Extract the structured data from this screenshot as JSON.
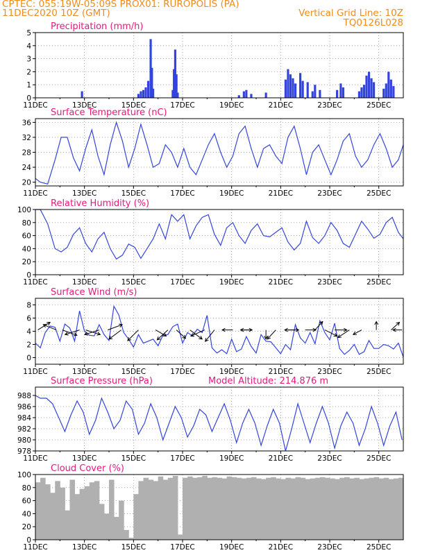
{
  "header": {
    "left_line1": "CPTEC:    055:19W-05:09S   PROX01: RUROPOLIS (PA)",
    "left_line2": "11DEC2020 10Z (GMT)",
    "right_line2": "Vertical Grid Line: 10Z",
    "right_line3": "TQ0126L028"
  },
  "colors": {
    "header": "#f08c1e",
    "title": "#e8177e",
    "line": "#3344dd",
    "cloud": "#b0b0b0",
    "grid": "#999999"
  },
  "x_axis": {
    "ticks": [
      "11DEC",
      "13DEC",
      "15DEC",
      "17DEC",
      "19DEC",
      "21DEC",
      "23DEC",
      "25DEC"
    ],
    "range_days": [
      0,
      15
    ]
  },
  "chart_data": [
    {
      "type": "bar",
      "title": "Precipitation (mm/h)",
      "ylim": [
        0,
        5
      ],
      "yticks": [
        "0",
        "1",
        "2",
        "3",
        "4",
        "5"
      ],
      "bars": [
        [
          1.9,
          0.5
        ],
        [
          4.2,
          0.3
        ],
        [
          4.3,
          0.5
        ],
        [
          4.4,
          0.6
        ],
        [
          4.5,
          0.8
        ],
        [
          4.6,
          1.3
        ],
        [
          4.7,
          4.5
        ],
        [
          4.75,
          2.3
        ],
        [
          4.8,
          0.7
        ],
        [
          5.6,
          0.6
        ],
        [
          5.65,
          2.2
        ],
        [
          5.7,
          3.7
        ],
        [
          5.75,
          1.8
        ],
        [
          5.8,
          0.4
        ],
        [
          8.3,
          0.2
        ],
        [
          8.5,
          0.5
        ],
        [
          8.6,
          0.6
        ],
        [
          8.8,
          0.3
        ],
        [
          9.4,
          0.4
        ],
        [
          10.2,
          1.4
        ],
        [
          10.3,
          2.2
        ],
        [
          10.4,
          1.8
        ],
        [
          10.5,
          1.5
        ],
        [
          10.6,
          1.1
        ],
        [
          10.8,
          1.9
        ],
        [
          10.9,
          1.3
        ],
        [
          11.1,
          1.2
        ],
        [
          11.3,
          0.5
        ],
        [
          11.4,
          1.0
        ],
        [
          11.6,
          0.6
        ],
        [
          12.3,
          0.6
        ],
        [
          12.45,
          1.1
        ],
        [
          12.55,
          0.8
        ],
        [
          13.2,
          0.5
        ],
        [
          13.3,
          0.8
        ],
        [
          13.4,
          1.0
        ],
        [
          13.5,
          1.7
        ],
        [
          13.6,
          2.0
        ],
        [
          13.7,
          1.5
        ],
        [
          13.8,
          1.2
        ],
        [
          14.2,
          0.7
        ],
        [
          14.3,
          1.1
        ],
        [
          14.4,
          2.0
        ],
        [
          14.5,
          1.4
        ],
        [
          14.6,
          0.9
        ]
      ]
    },
    {
      "type": "line",
      "title": "Surface Temperature (nC)",
      "ylim": [
        19,
        37
      ],
      "yticks": [
        "20",
        "24",
        "28",
        "32",
        "36"
      ],
      "x": [
        0.0,
        0.2,
        0.5,
        0.8,
        1.05,
        1.3,
        1.55,
        1.8,
        2.05,
        2.3,
        2.55,
        2.8,
        3.05,
        3.3,
        3.55,
        3.8,
        4.05,
        4.3,
        4.55,
        4.8,
        5.05,
        5.3,
        5.55,
        5.8,
        6.05,
        6.3,
        6.55,
        6.8,
        7.05,
        7.3,
        7.55,
        7.8,
        8.05,
        8.3,
        8.55,
        8.8,
        9.05,
        9.3,
        9.55,
        9.8,
        10.05,
        10.3,
        10.55,
        10.8,
        11.05,
        11.3,
        11.55,
        11.8,
        12.05,
        12.3,
        12.55,
        12.8,
        13.05,
        13.3,
        13.55,
        13.8,
        14.05,
        14.3,
        14.55,
        14.8,
        15.0
      ],
      "y": [
        21,
        20,
        19.5,
        26,
        32,
        32,
        26.5,
        23,
        29,
        34,
        27,
        22,
        30,
        36,
        31,
        24,
        29,
        35.5,
        30,
        24,
        25,
        30,
        28,
        24,
        29,
        24,
        22,
        26,
        30,
        33,
        28,
        24,
        27,
        33,
        35,
        29,
        24,
        29,
        30,
        27,
        25,
        32,
        35,
        29,
        22,
        28,
        30,
        26,
        22,
        26,
        31,
        33,
        27,
        24,
        26,
        30,
        33,
        29,
        24,
        26,
        30
      ]
    },
    {
      "type": "line",
      "title": "Relative Humidity (%)",
      "ylim": [
        0,
        100
      ],
      "yticks": [
        "0",
        "20",
        "40",
        "60",
        "80",
        "100"
      ],
      "x": [
        0.0,
        0.2,
        0.5,
        0.8,
        1.05,
        1.3,
        1.55,
        1.8,
        2.05,
        2.3,
        2.55,
        2.8,
        3.05,
        3.3,
        3.55,
        3.8,
        4.05,
        4.3,
        4.55,
        4.8,
        5.05,
        5.3,
        5.55,
        5.8,
        6.05,
        6.3,
        6.55,
        6.8,
        7.05,
        7.3,
        7.55,
        7.8,
        8.05,
        8.3,
        8.55,
        8.8,
        9.05,
        9.3,
        9.55,
        9.8,
        10.05,
        10.3,
        10.55,
        10.8,
        11.05,
        11.3,
        11.55,
        11.8,
        12.05,
        12.3,
        12.55,
        12.8,
        13.05,
        13.3,
        13.55,
        13.8,
        14.05,
        14.3,
        14.55,
        14.8,
        15.0
      ],
      "y": [
        100,
        100,
        78,
        40,
        35,
        42,
        62,
        72,
        48,
        35,
        55,
        65,
        40,
        24,
        30,
        47,
        42,
        25,
        40,
        55,
        78,
        55,
        92,
        82,
        92,
        55,
        75,
        88,
        92,
        62,
        45,
        72,
        80,
        60,
        48,
        68,
        78,
        60,
        58,
        65,
        72,
        50,
        38,
        48,
        82,
        57,
        48,
        60,
        80,
        68,
        48,
        42,
        62,
        82,
        70,
        56,
        62,
        80,
        88,
        65,
        55
      ]
    },
    {
      "type": "line",
      "title": "Surface Wind (m/s)",
      "ylim": [
        -1,
        9
      ],
      "yticks": [
        "0",
        "2",
        "4",
        "6",
        "8"
      ],
      "x": [
        0.0,
        0.2,
        0.4,
        0.6,
        0.8,
        1.0,
        1.2,
        1.4,
        1.6,
        1.8,
        2.0,
        2.2,
        2.4,
        2.6,
        2.8,
        3.0,
        3.2,
        3.4,
        3.6,
        3.8,
        4.0,
        4.2,
        4.4,
        4.6,
        4.8,
        5.0,
        5.2,
        5.4,
        5.6,
        5.8,
        6.0,
        6.2,
        6.4,
        6.6,
        6.8,
        7.0,
        7.2,
        7.4,
        7.6,
        7.8,
        8.0,
        8.2,
        8.4,
        8.6,
        8.8,
        9.0,
        9.2,
        9.4,
        9.6,
        9.8,
        10.0,
        10.2,
        10.4,
        10.6,
        10.8,
        11.0,
        11.2,
        11.4,
        11.6,
        11.8,
        12.0,
        12.2,
        12.4,
        12.6,
        12.8,
        13.0,
        13.2,
        13.4,
        13.6,
        13.8,
        14.0,
        14.2,
        14.4,
        14.6,
        14.8,
        15.0
      ],
      "y": [
        2.2,
        1.5,
        3.8,
        4.8,
        4.6,
        2.5,
        5.1,
        4.5,
        2.5,
        7.1,
        4.0,
        3.4,
        3.3,
        5.0,
        3.5,
        2.6,
        7.8,
        6.5,
        3.8,
        2.8,
        1.6,
        3.5,
        2.2,
        2.5,
        2.8,
        1.8,
        3.4,
        3.5,
        4.7,
        5.1,
        2.2,
        3.8,
        3.3,
        4.3,
        3.8,
        6.4,
        1.5,
        0.7,
        1.2,
        0.6,
        2.8,
        0.9,
        1.3,
        3.2,
        1.7,
        0.7,
        3.5,
        2.5,
        2.4,
        1.5,
        0.6,
        2.0,
        1.2,
        5.0,
        3.0,
        2.2,
        3.8,
        2.1,
        5.6,
        3.8,
        2.7,
        5.2,
        1.4,
        0.5,
        1.1,
        2.0,
        0.5,
        0.9,
        2.6,
        1.4,
        1.4,
        2.0,
        1.8,
        1.3,
        2.2,
        0.1
      ],
      "arrows": [
        [
          0.1,
          4.2,
          0.8,
          0.5
        ],
        [
          0.85,
          4.2,
          -0.85,
          0.35
        ],
        [
          1.1,
          4.2,
          0.95,
          -0.35
        ],
        [
          1.8,
          4.2,
          -0.95,
          -0.3
        ],
        [
          2.05,
          4.2,
          0.95,
          -0.3
        ],
        [
          2.6,
          4.2,
          -0.95,
          -0.3
        ],
        [
          2.95,
          4.2,
          0.95,
          0.35
        ],
        [
          3.5,
          4.2,
          -0.8,
          -0.6
        ],
        [
          4.2,
          4.2,
          -0.7,
          -0.7
        ],
        [
          4.9,
          4.2,
          0.7,
          -0.4
        ],
        [
          5.4,
          4.2,
          -0.7,
          -0.65
        ],
        [
          5.75,
          4.2,
          0.6,
          -0.55
        ],
        [
          6.3,
          4.2,
          0.8,
          -0.6
        ],
        [
          6.9,
          4.2,
          -0.9,
          -0.4
        ],
        [
          7.3,
          4.2,
          -0.6,
          -0.75
        ],
        [
          8.05,
          4.2,
          -0.7,
          0.0
        ],
        [
          8.4,
          4.2,
          0.7,
          0.0
        ],
        [
          8.8,
          4.2,
          -0.7,
          0.0
        ],
        [
          9.4,
          4.2,
          0.0,
          -0.6
        ],
        [
          9.8,
          4.2,
          -0.55,
          -0.6
        ],
        [
          10.3,
          4.2,
          0.7,
          0.0
        ],
        [
          10.6,
          4.2,
          -0.7,
          0.0
        ],
        [
          11.0,
          4.2,
          0.7,
          0.0
        ],
        [
          11.4,
          4.2,
          0.5,
          0.55
        ],
        [
          11.8,
          4.2,
          0.8,
          -0.4
        ],
        [
          12.2,
          4.2,
          0.8,
          0.0
        ],
        [
          12.8,
          4.2,
          -0.75,
          -0.5
        ],
        [
          13.3,
          4.2,
          -0.55,
          -0.3
        ],
        [
          13.9,
          4.2,
          0.0,
          0.55
        ],
        [
          14.5,
          4.2,
          0.55,
          0.5
        ],
        [
          14.95,
          4.2,
          -0.6,
          0.0
        ]
      ]
    },
    {
      "type": "line",
      "title": "Surface Pressure (hPa)",
      "annotation": "Model Altitude: 214.876 m",
      "ylim": [
        978,
        989.5
      ],
      "yticks": [
        "978",
        "980",
        "982",
        "984",
        "986",
        "988"
      ],
      "x": [
        0.0,
        0.2,
        0.45,
        0.7,
        0.95,
        1.2,
        1.45,
        1.7,
        1.95,
        2.2,
        2.45,
        2.7,
        2.95,
        3.2,
        3.45,
        3.7,
        3.95,
        4.2,
        4.45,
        4.7,
        4.95,
        5.2,
        5.45,
        5.7,
        5.95,
        6.2,
        6.45,
        6.7,
        6.95,
        7.2,
        7.45,
        7.7,
        7.95,
        8.2,
        8.45,
        8.7,
        8.95,
        9.2,
        9.45,
        9.7,
        9.95,
        10.2,
        10.45,
        10.7,
        10.95,
        11.2,
        11.45,
        11.7,
        11.95,
        12.2,
        12.45,
        12.7,
        12.95,
        13.2,
        13.45,
        13.7,
        13.95,
        14.2,
        14.45,
        14.7,
        14.95
      ],
      "y": [
        988,
        987.5,
        987.5,
        986.5,
        984,
        981.5,
        984.5,
        987,
        985,
        981,
        983.5,
        987.5,
        985,
        982,
        983.5,
        987,
        985.5,
        981,
        983,
        986.5,
        984,
        980,
        983,
        986,
        984,
        980.5,
        982.5,
        985.5,
        984.5,
        981.5,
        984,
        986.5,
        983.5,
        979.5,
        983,
        985.5,
        983,
        979,
        982.5,
        985.5,
        983,
        978,
        982,
        986.5,
        983,
        979.5,
        983,
        986,
        983,
        978.5,
        982.5,
        985,
        983,
        979,
        982,
        986,
        983,
        979,
        982.5,
        985,
        980
      ]
    },
    {
      "type": "bar",
      "title": "Cloud Cover (%)",
      "ylim": [
        0,
        100
      ],
      "yticks": [
        "0",
        "20",
        "40",
        "60",
        "80",
        "100"
      ],
      "x": [
        0.0,
        0.2,
        0.4,
        0.6,
        0.8,
        1.0,
        1.2,
        1.4,
        1.6,
        1.8,
        2.0,
        2.2,
        2.4,
        2.6,
        2.8,
        3.0,
        3.2,
        3.4,
        3.6,
        3.8,
        4.0,
        4.2,
        4.4,
        4.6,
        4.8,
        5.0,
        5.2,
        5.4,
        5.6,
        5.8,
        6.0,
        6.2,
        6.4,
        6.6,
        6.8,
        7.0,
        7.2,
        7.4,
        7.6,
        7.8,
        8.0,
        8.2,
        8.4,
        8.6,
        8.8,
        9.0,
        9.2,
        9.4,
        9.6,
        9.8,
        10.0,
        10.2,
        10.4,
        10.6,
        10.8,
        11.0,
        11.2,
        11.4,
        11.6,
        11.8,
        12.0,
        12.2,
        12.4,
        12.6,
        12.8,
        13.0,
        13.2,
        13.4,
        13.6,
        13.8,
        14.0,
        14.2,
        14.4,
        14.6,
        14.8
      ],
      "values": [
        88,
        95,
        85,
        72,
        90,
        80,
        45,
        92,
        70,
        78,
        82,
        88,
        90,
        55,
        40,
        92,
        35,
        60,
        15,
        3,
        70,
        90,
        95,
        92,
        90,
        97,
        92,
        95,
        98,
        8,
        95,
        97,
        95,
        96,
        98,
        95,
        96,
        95,
        94,
        97,
        96,
        95,
        94,
        95,
        96,
        94,
        93,
        95,
        96,
        94,
        93,
        95,
        94,
        96,
        95,
        93,
        94,
        95,
        96,
        95,
        94,
        93,
        95,
        96,
        94,
        95,
        93,
        94,
        95,
        96,
        94,
        95,
        93,
        94,
        95
      ]
    }
  ]
}
